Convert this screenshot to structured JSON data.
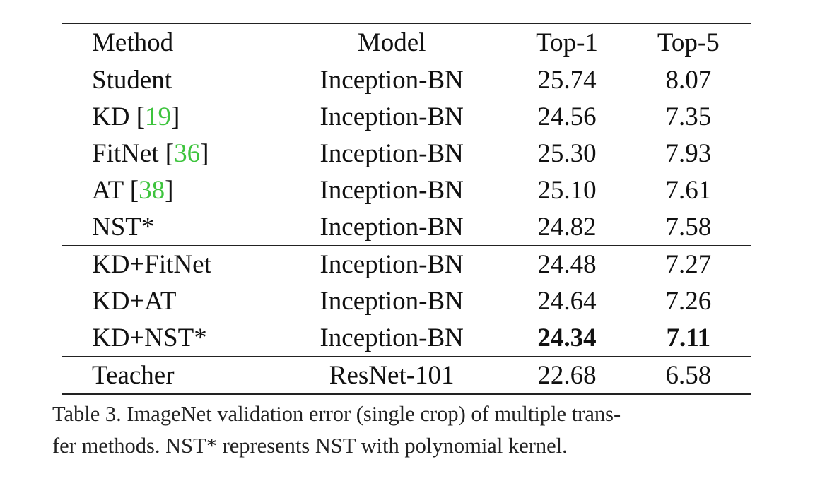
{
  "table": {
    "headers": {
      "method": "Method",
      "model": "Model",
      "top1": "Top-1",
      "top5": "Top-5"
    },
    "rows": [
      {
        "method": "Student",
        "cite": "",
        "model": "Inception-BN",
        "top1": "25.74",
        "top5": "8.07"
      },
      {
        "method": "KD [",
        "cite": "19",
        "close": "]",
        "model": "Inception-BN",
        "top1": "24.56",
        "top5": "7.35"
      },
      {
        "method": "FitNet [",
        "cite": "36",
        "close": "]",
        "model": "Inception-BN",
        "top1": "25.30",
        "top5": "7.93"
      },
      {
        "method": "AT [",
        "cite": "38",
        "close": "]",
        "model": "Inception-BN",
        "top1": "25.10",
        "top5": "7.61"
      },
      {
        "method": "NST*",
        "cite": "",
        "model": "Inception-BN",
        "top1": "24.82",
        "top5": "7.58"
      },
      {
        "method": "KD+FitNet",
        "cite": "",
        "model": "Inception-BN",
        "top1": "24.48",
        "top5": "7.27"
      },
      {
        "method": "KD+AT",
        "cite": "",
        "model": "Inception-BN",
        "top1": "24.64",
        "top5": "7.26"
      },
      {
        "method": "KD+NST*",
        "cite": "",
        "model": "Inception-BN",
        "top1": "24.34",
        "top5": "7.11",
        "bold": true
      },
      {
        "method": "Teacher",
        "cite": "",
        "model": "ResNet-101",
        "top1": "22.68",
        "top5": "6.58"
      }
    ],
    "group_ends": [
      4,
      7
    ],
    "citation_color": "#3ec43e"
  },
  "caption": {
    "line1": "Table 3. ImageNet validation error (single crop) of multiple trans-",
    "line2": "fer methods. NST* represents NST with polynomial kernel."
  }
}
